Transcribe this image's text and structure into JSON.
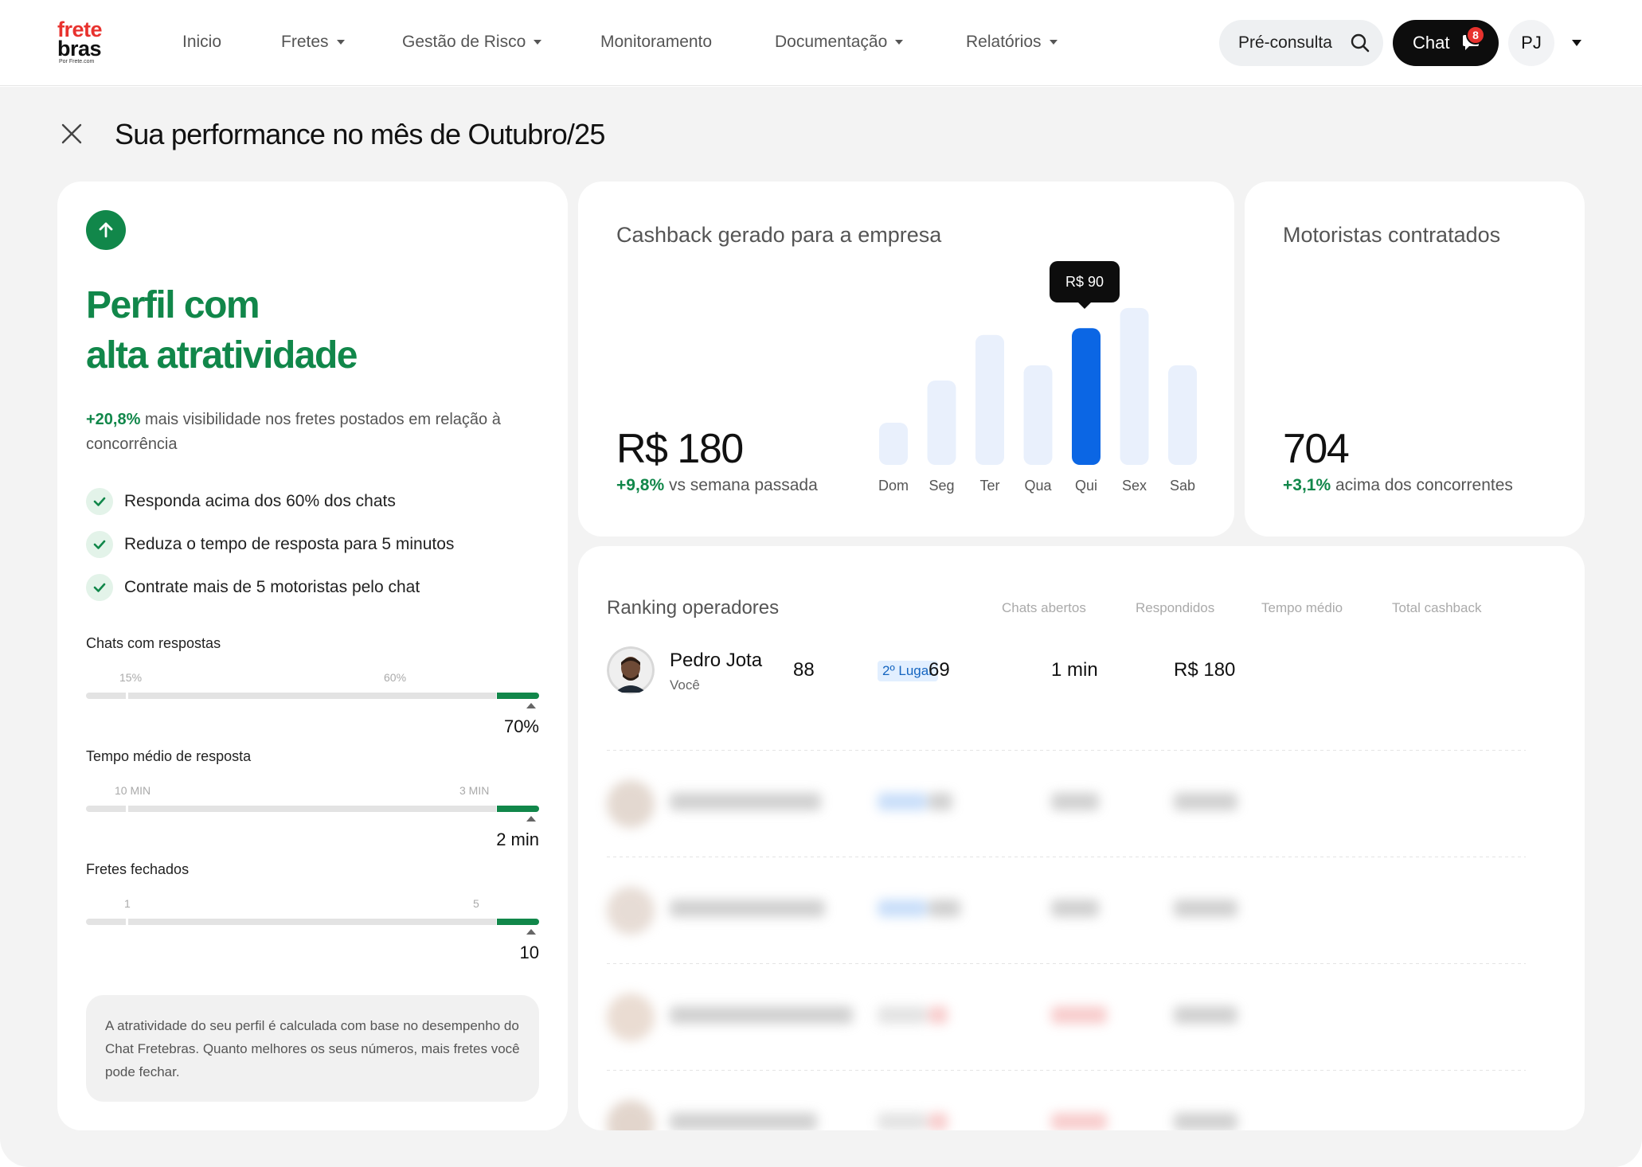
{
  "logo": {
    "line1": "frete",
    "line2": "bras",
    "tagline": "Por Frete.com"
  },
  "nav": {
    "items": [
      {
        "label": "Inicio",
        "dropdown": false
      },
      {
        "label": "Fretes",
        "dropdown": true
      },
      {
        "label": "Gestão de Risco",
        "dropdown": true
      },
      {
        "label": "Monitoramento",
        "dropdown": false
      },
      {
        "label": "Documentação",
        "dropdown": true
      },
      {
        "label": "Relatórios",
        "dropdown": true
      }
    ],
    "preconsulta_label": "Pré-consulta",
    "chat_label": "Chat",
    "chat_badge": "8",
    "user_initials": "PJ"
  },
  "page": {
    "title": "Sua performance no mês de Outubro/25"
  },
  "profile": {
    "title_line1": "Perfil com",
    "title_line2": "alta atratividade",
    "highlight": "+20,8%",
    "description": " mais visibilidade nos fretes postados em relação à concorrência",
    "checklist": [
      "Responda acima dos 60% dos chats",
      "Reduza o tempo de resposta para 5 minutos",
      "Contrate mais de 5 motoristas pelo chat"
    ],
    "metrics": [
      {
        "label": "Chats com respostas",
        "tick1": "15%",
        "tick2": "60%",
        "value": "70%"
      },
      {
        "label": "Tempo médio de resposta",
        "tick1": "10 MIN",
        "tick2": "3 MIN",
        "value": "2 min"
      },
      {
        "label": "Fretes fechados",
        "tick1": "1",
        "tick2": "5",
        "value": "10"
      }
    ],
    "info": "A atratividade do seu perfil é calculada com base no desempenho do Chat Fretebras. Quanto melhores os seus números, mais fretes você pode fechar."
  },
  "cashback": {
    "title": "Cashback gerado para a empresa",
    "value": "R$ 180",
    "delta": "+9,8%",
    "delta_text": " vs semana passada",
    "tooltip": "R$ 90"
  },
  "chart_data": {
    "type": "bar",
    "categories": [
      "Dom",
      "Seg",
      "Ter",
      "Qua",
      "Qui",
      "Sex",
      "Sab"
    ],
    "values": [
      25,
      50,
      77,
      59,
      81,
      93,
      59
    ],
    "highlight_index": 4,
    "colors": {
      "bar": "#e9f0fc",
      "highlight": "#0b66e4"
    }
  },
  "motoristas": {
    "title": "Motoristas contratados",
    "value": "704",
    "delta": "+3,1%",
    "delta_text": " acima dos concorrentes"
  },
  "ranking": {
    "title": "Ranking operadores",
    "columns": [
      "Chats abertos",
      "Respondidos",
      "Tempo médio",
      "Total cashback"
    ],
    "rows": [
      {
        "name": "Pedro Jota",
        "subtitle": "Você",
        "place": "2º Lugar",
        "chats": "88",
        "respondidos": "69",
        "tempo": "1 min",
        "cashback": "R$ 180"
      }
    ]
  }
}
